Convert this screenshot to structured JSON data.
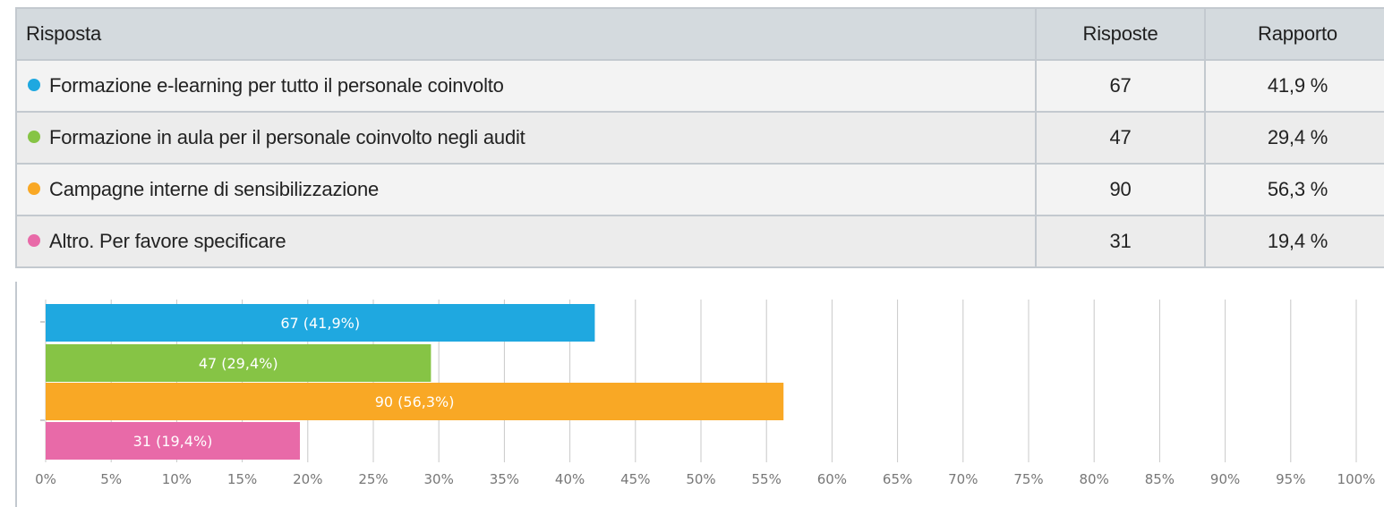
{
  "table": {
    "headers": {
      "answer": "Risposta",
      "count": "Risposte",
      "ratio": "Rapporto"
    },
    "rows": [
      {
        "label": "Formazione e-learning per tutto il personale coinvolto",
        "count": "67",
        "ratio": "41,9 %",
        "color": "#1fa8e0"
      },
      {
        "label": "Formazione in aula per il personale coinvolto negli audit",
        "count": "47",
        "ratio": "29,4 %",
        "color": "#86c445"
      },
      {
        "label": "Campagne interne di sensibilizzazione",
        "count": "90",
        "ratio": "56,3 %",
        "color": "#f9a825"
      },
      {
        "label": "Altro. Per favore specificare",
        "count": "31",
        "ratio": "19,4 %",
        "color": "#e86aa8"
      }
    ]
  },
  "chart_data": {
    "type": "bar",
    "orientation": "horizontal",
    "categories": [
      "Formazione e-learning per tutto il personale coinvolto",
      "Formazione in aula per il personale coinvolto negli audit",
      "Campagne interne di sensibilizzazione",
      "Altro. Per favore specificare"
    ],
    "values": [
      41.9,
      29.4,
      56.3,
      19.4
    ],
    "data_labels": [
      "67 (41,9%)",
      "47 (29,4%)",
      "90 (56,3%)",
      "31 (19,4%)"
    ],
    "colors": [
      "#1fa8e0",
      "#86c445",
      "#f9a825",
      "#e86aa8"
    ],
    "xlim": [
      0,
      100
    ],
    "xticks": [
      "0%",
      "5%",
      "10%",
      "15%",
      "20%",
      "25%",
      "30%",
      "35%",
      "40%",
      "45%",
      "50%",
      "55%",
      "60%",
      "65%",
      "70%",
      "75%",
      "80%",
      "85%",
      "90%",
      "95%",
      "100%"
    ],
    "grid": true,
    "title": "",
    "xlabel": "",
    "ylabel": ""
  }
}
